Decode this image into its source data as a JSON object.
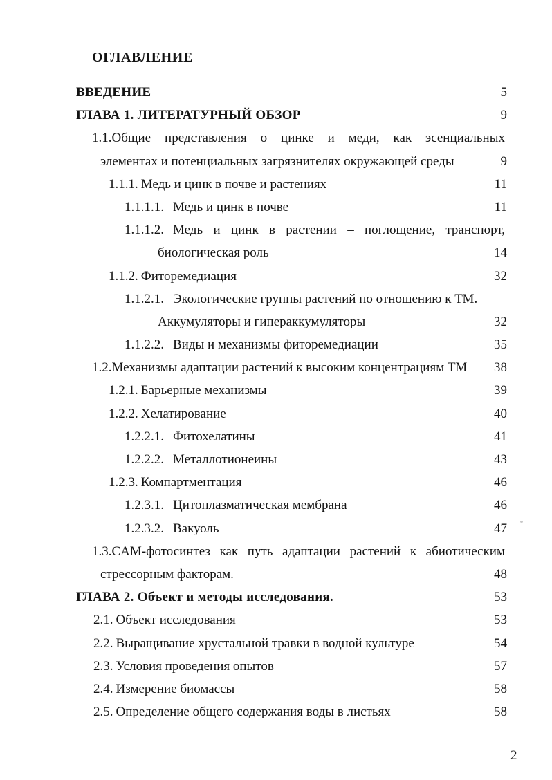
{
  "page": {
    "heading": "ОГЛАВЛЕНИЕ",
    "footer_page_number": "2",
    "background_color": "#ffffff",
    "text_color": "#141414"
  },
  "toc": {
    "rows": [
      {
        "text": "ВВЕДЕНИЕ",
        "page": "5"
      },
      {
        "text": "ГЛАВА 1. ЛИТЕРАТУРНЫЙ ОБЗОР",
        "page": "9"
      },
      {
        "num": "1.1.",
        "text": "Общие представления о цинке и меди, как эсенциальных"
      },
      {
        "text": "элементах и потенциальных загрязнителях окружающей среды",
        "page": "9"
      },
      {
        "num": "1.1.1.",
        "text": "Медь и цинк в почве и растениях",
        "page": "11"
      },
      {
        "num": "1.1.1.1.",
        "text": "Медь и цинк в почве",
        "page": "11"
      },
      {
        "num": "1.1.1.2.",
        "text": "Медь и цинк в растении – поглощение, транспорт,"
      },
      {
        "text": "биологическая роль",
        "page": "14"
      },
      {
        "num": "1.1.2.",
        "text": "Фиторемедиация",
        "page": "32"
      },
      {
        "num": "1.1.2.1.",
        "text": "Экологические группы растений по отношению к ТМ."
      },
      {
        "text": "Аккумуляторы и гипераккумуляторы",
        "page": "32"
      },
      {
        "num": "1.1.2.2.",
        "text": "Виды и механизмы фиторемедиации",
        "page": "35"
      },
      {
        "num": "1.2.",
        "text": "Механизмы адаптации растений к высоким концентрациям ТМ",
        "page": "38"
      },
      {
        "num": "1.2.1.",
        "text": "Барьерные механизмы",
        "page": "39"
      },
      {
        "num": "1.2.2.",
        "text": "Хелатирование",
        "page": "40"
      },
      {
        "num": "1.2.2.1.",
        "text": "Фитохелатины",
        "page": "41"
      },
      {
        "num": "1.2.2.2.",
        "text": "Металлотионеины",
        "page": "43"
      },
      {
        "num": "1.2.3.",
        "text": "Компартментация",
        "page": "46"
      },
      {
        "num": "1.2.3.1.",
        "text": "Цитоплазматическая мембрана",
        "page": "46"
      },
      {
        "num": "1.2.3.2.",
        "text": "Вакуоль",
        "page": "47"
      },
      {
        "num": "1.3.",
        "text": "CAM-фотосинтез как путь адаптации растений к абиотическим"
      },
      {
        "text": "стрессорным факторам.",
        "page": "48"
      },
      {
        "text": "ГЛАВА 2. Объект и методы исследования.",
        "page": "53"
      },
      {
        "num": "2.1.",
        "text": "Объект исследования",
        "page": "53"
      },
      {
        "num": "2.2.",
        "text": "Выращивание хрустальной травки в водной культуре",
        "page": "54"
      },
      {
        "num": "2.3.",
        "text": "Условия проведения опытов",
        "page": "57"
      },
      {
        "num": "2.4.",
        "text": "Измерение биомассы",
        "page": "58"
      },
      {
        "num": "2.5.",
        "text": "Определение общего содержания воды в листьях",
        "page": "58"
      }
    ]
  }
}
